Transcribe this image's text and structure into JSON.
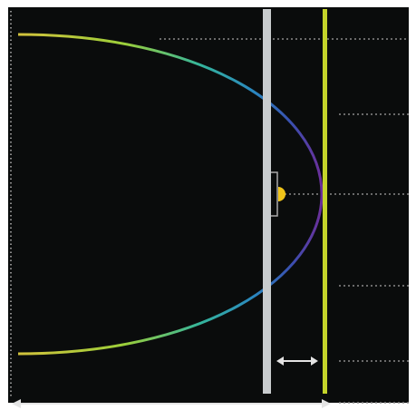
{
  "diagram": {
    "colors": {
      "frame": "#ffffff",
      "background": "#0a0c0c",
      "grid_dots": "#8a8a8a",
      "plate": "#c8ccce",
      "target_line": "#c4d42a",
      "source": "#f0c419",
      "mount": "#a9a9a9",
      "arrows": "#e4e4e4",
      "curve_gradient": [
        "#d2c23c",
        "#9ccf3a",
        "#34b59c",
        "#2a86c0",
        "#3a4fb0",
        "#6c2f9a"
      ]
    },
    "elements": {
      "curve": "parabolic-reflector-profile",
      "source_icon": "light-source",
      "gap_arrow": "double-arrow",
      "width_arrow": "double-arrow"
    }
  }
}
